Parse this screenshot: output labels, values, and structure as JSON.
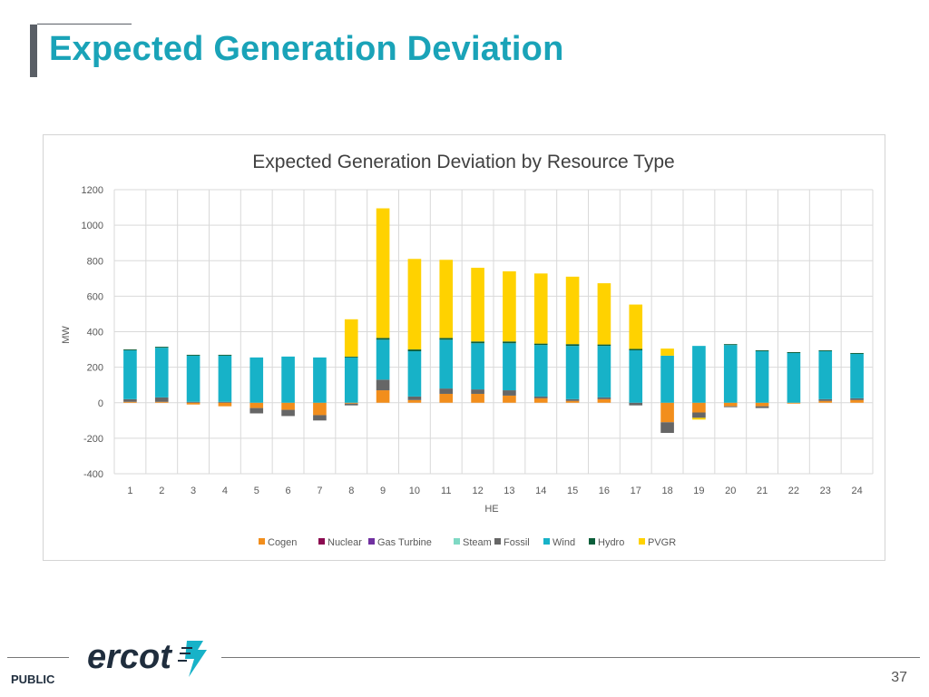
{
  "page": {
    "title": "Expected Generation Deviation",
    "footer_label": "PUBLIC",
    "page_number": "37",
    "logo_text": "ercot"
  },
  "colors": {
    "title": "#1aa3b8",
    "Cogen": "#f28e1c",
    "Nuclear": "#8b0a50",
    "Gas Turbine": "#7030a0",
    "Steam": "#7fd9c4",
    "Fossil": "#666666",
    "Wind": "#17b2c8",
    "Hydro": "#0b5e3a",
    "PVGR": "#ffd200",
    "logo_mark": "#17b2c8"
  },
  "chart_data": {
    "type": "bar",
    "stacked": true,
    "title": "Expected Generation Deviation by Resource Type",
    "xlabel": "HE",
    "ylabel": "MW",
    "ylim": [
      -400,
      1200
    ],
    "yticks": [
      -400,
      -200,
      0,
      200,
      400,
      600,
      800,
      1000,
      1200
    ],
    "grid": true,
    "legend_position": "bottom",
    "categories": [
      "1",
      "2",
      "3",
      "4",
      "5",
      "6",
      "7",
      "8",
      "9",
      "10",
      "11",
      "12",
      "13",
      "14",
      "15",
      "16",
      "17",
      "18",
      "19",
      "20",
      "21",
      "22",
      "23",
      "24"
    ],
    "series": [
      {
        "name": "Cogen",
        "values": [
          5,
          5,
          -10,
          -20,
          -30,
          -40,
          -70,
          -5,
          70,
          15,
          50,
          50,
          40,
          25,
          10,
          20,
          0,
          -110,
          -55,
          -20,
          -20,
          -5,
          10,
          15
        ]
      },
      {
        "name": "Nuclear",
        "values": [
          0,
          0,
          0,
          0,
          0,
          0,
          0,
          0,
          0,
          0,
          0,
          0,
          0,
          0,
          0,
          0,
          0,
          0,
          0,
          0,
          0,
          0,
          0,
          0
        ]
      },
      {
        "name": "Gas Turbine",
        "values": [
          0,
          0,
          0,
          0,
          0,
          0,
          0,
          0,
          0,
          0,
          0,
          0,
          0,
          0,
          0,
          0,
          0,
          0,
          0,
          0,
          0,
          0,
          0,
          0
        ]
      },
      {
        "name": "Steam",
        "values": [
          0,
          0,
          0,
          0,
          0,
          0,
          0,
          0,
          0,
          0,
          0,
          0,
          0,
          0,
          0,
          0,
          0,
          0,
          0,
          0,
          0,
          0,
          0,
          0
        ]
      },
      {
        "name": "Fossil",
        "values": [
          15,
          25,
          5,
          5,
          -30,
          -35,
          -30,
          -10,
          60,
          20,
          30,
          25,
          30,
          10,
          10,
          10,
          -15,
          -60,
          -30,
          -5,
          -10,
          0,
          10,
          10
        ]
      },
      {
        "name": "Wind",
        "values": [
          275,
          280,
          260,
          260,
          255,
          260,
          255,
          255,
          225,
          255,
          275,
          260,
          265,
          290,
          300,
          290,
          295,
          265,
          320,
          325,
          290,
          280,
          270,
          250
        ]
      },
      {
        "name": "Hydro",
        "values": [
          5,
          5,
          5,
          5,
          0,
          0,
          0,
          5,
          10,
          10,
          10,
          10,
          10,
          8,
          10,
          8,
          8,
          0,
          0,
          5,
          5,
          5,
          5,
          5
        ]
      },
      {
        "name": "PVGR",
        "values": [
          0,
          0,
          0,
          0,
          0,
          0,
          0,
          210,
          730,
          510,
          440,
          415,
          395,
          395,
          380,
          345,
          250,
          40,
          -10,
          0,
          0,
          0,
          0,
          0
        ]
      }
    ]
  }
}
